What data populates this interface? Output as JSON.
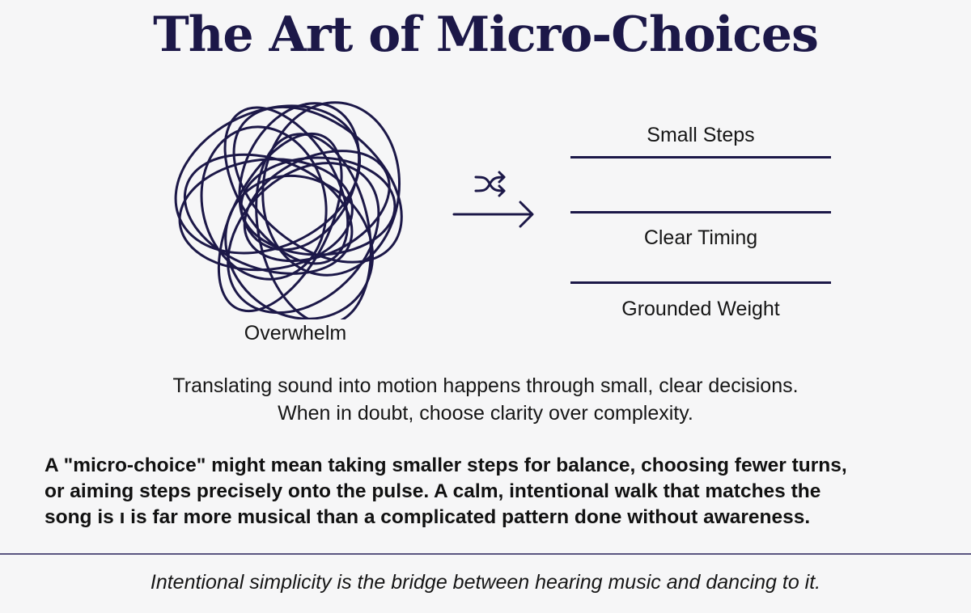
{
  "title": "The Art of Micro-Choices",
  "colors": {
    "accent": "#1c1848",
    "background": "#f6f6f7",
    "text": "#111111"
  },
  "left": {
    "icon": "tangled-scribble-icon",
    "label": "Overwhelm"
  },
  "transition": {
    "icons": [
      "shuffle-icon",
      "arrow-right-icon"
    ]
  },
  "right": {
    "items": [
      {
        "label": "Small Steps"
      },
      {
        "label": "Clear Timing"
      },
      {
        "label": "Grounded Weight"
      }
    ]
  },
  "summary": {
    "line1": "Translating sound into motion happens through small, clear decisions.",
    "line2": "When in doubt, choose clarity over complexity."
  },
  "detail": {
    "line1": "A \"micro-choice\" might mean taking smaller steps for balance, choosing fewer turns,",
    "line2": "or aiming steps precisely onto the pulse. A calm, intentional walk that matches the",
    "line3": "song is ı is far more musical than a complicated pattern done without awareness."
  },
  "footer": "Intentional simplicity is the bridge between hearing music and dancing to it."
}
